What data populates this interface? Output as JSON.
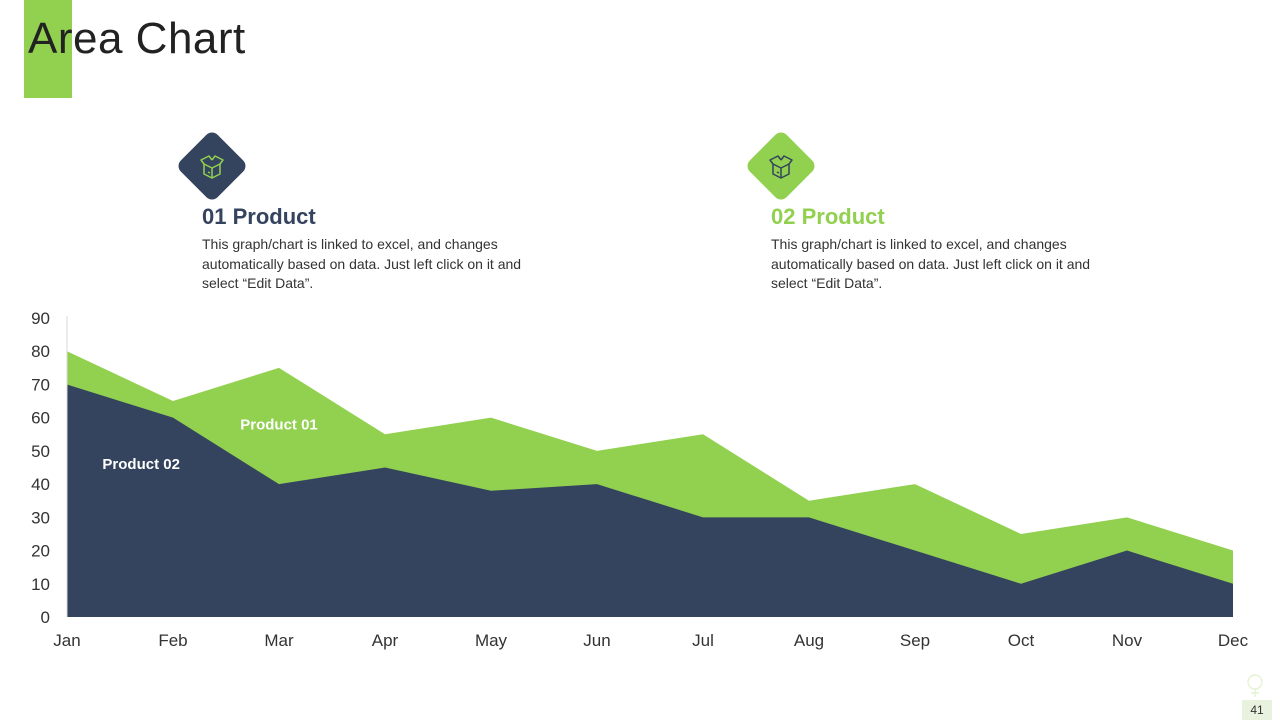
{
  "slide": {
    "title": "Area Chart",
    "page_number": "41",
    "accent_color": "#92d050",
    "dark_color": "#34445e"
  },
  "products": [
    {
      "heading": "01 Product",
      "description": "This graph/chart is linked to excel, and changes automatically based on data. Just left click on it and select “Edit Data”.",
      "icon": "box-icon",
      "color": "#34445e"
    },
    {
      "heading": "02 Product",
      "description": "This graph/chart is linked to excel, and changes automatically based on data. Just left click on it and select “Edit Data”.",
      "icon": "box-icon",
      "color": "#92d050"
    }
  ],
  "chart_data": {
    "type": "area",
    "categories": [
      "Jan",
      "Feb",
      "Mar",
      "Apr",
      "May",
      "Jun",
      "Jul",
      "Aug",
      "Sep",
      "Oct",
      "Nov",
      "Dec"
    ],
    "series": [
      {
        "name": "Product 01",
        "values": [
          80,
          65,
          75,
          55,
          60,
          50,
          55,
          35,
          40,
          25,
          30,
          20
        ],
        "color": "#92d050"
      },
      {
        "name": "Product 02",
        "values": [
          70,
          60,
          40,
          45,
          38,
          40,
          30,
          30,
          20,
          10,
          20,
          10
        ],
        "color": "#34445e"
      }
    ],
    "ylim": [
      0,
      90
    ],
    "yticks": [
      0,
      10,
      20,
      30,
      40,
      50,
      60,
      70,
      80,
      90
    ],
    "grid": false,
    "legend": "inline-labels"
  }
}
